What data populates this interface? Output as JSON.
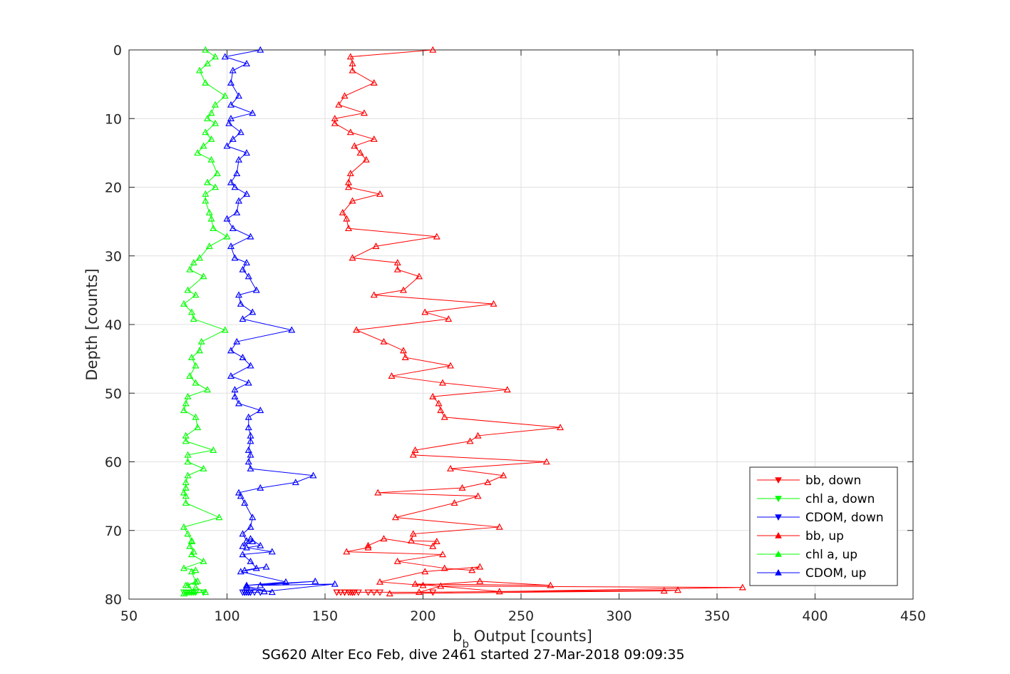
{
  "chart_data": {
    "type": "line",
    "title": "",
    "caption": "SG620 Alter Eco Feb, dive 2461 started 27-Mar-2018 09:09:35",
    "xlabel": "b",
    "xlabel_sub": "b",
    "xlabel_rest": " Output [counts]",
    "ylabel": "Depth [counts]",
    "xlim": [
      50,
      450
    ],
    "ylim": [
      0,
      80
    ],
    "y_reversed": true,
    "grid": true,
    "legend_position": "bottom-right",
    "xticks": [
      "50",
      "100",
      "150",
      "200",
      "250",
      "300",
      "350",
      "400",
      "450"
    ],
    "yticks": [
      "0",
      "10",
      "20",
      "30",
      "40",
      "50",
      "60",
      "70",
      "80"
    ],
    "series": [
      {
        "name": "bb, down",
        "color": "#ff0000",
        "marker": "triangle-down",
        "x": [
          205,
          162,
          164,
          164,
          175,
          160,
          158,
          156,
          156,
          163,
          160,
          164,
          165,
          172,
          178,
          160,
          164,
          167
        ],
        "y": [
          79,
          79,
          79,
          79,
          79,
          79,
          79,
          79,
          79,
          79,
          79,
          79,
          79,
          79,
          79,
          79,
          79,
          79
        ]
      },
      {
        "name": "chl a, down",
        "color": "#00ff00",
        "marker": "triangle-down",
        "x": [
          81,
          83,
          81,
          80,
          79,
          82,
          78,
          80,
          80,
          81,
          79,
          84,
          88,
          82,
          79,
          80
        ],
        "y": [
          79,
          79,
          79,
          79,
          79,
          79,
          79,
          79,
          79,
          79,
          79,
          79,
          79,
          79,
          79,
          79
        ]
      },
      {
        "name": "CDOM, down",
        "color": "#0000ff",
        "marker": "triangle-down",
        "x": [
          109,
          111,
          110,
          117,
          114,
          112,
          109,
          111,
          111,
          110,
          109,
          108,
          111,
          109,
          112
        ],
        "y": [
          79,
          79,
          79,
          79,
          79,
          79,
          79,
          79,
          79,
          79,
          79,
          79,
          79,
          79,
          79
        ]
      },
      {
        "name": "bb, up",
        "color": "#ff0000",
        "marker": "triangle-up",
        "x": [
          205,
          163,
          164,
          164,
          175,
          160,
          157,
          170,
          155,
          155,
          163,
          175,
          165,
          168,
          171,
          163,
          162,
          162,
          178,
          164,
          159,
          161,
          162,
          207,
          176,
          164,
          187,
          187,
          198,
          190,
          175,
          236,
          201,
          213,
          166,
          180,
          190,
          191,
          214,
          184,
          210,
          243,
          205,
          208,
          209,
          211,
          270,
          228,
          224,
          196,
          195,
          263,
          214,
          241,
          233,
          220,
          177,
          228,
          216,
          186,
          239,
          195,
          194,
          207,
          205,
          180,
          172,
          172,
          161,
          210,
          187,
          211,
          225,
          229,
          201,
          178,
          200,
          229,
          265,
          196,
          239,
          363,
          209,
          198,
          330,
          323,
          183
        ],
        "y": [
          0,
          1,
          2,
          3,
          4.8,
          6.7,
          8,
          9.2,
          10,
          10.7,
          12,
          13,
          14,
          15,
          16,
          18,
          19.3,
          20,
          21,
          22,
          23.7,
          24.6,
          26,
          27.2,
          28.6,
          30.3,
          31,
          32,
          33,
          35,
          35.7,
          37,
          38.2,
          39.2,
          40.8,
          42.5,
          43.8,
          44.8,
          46,
          47.5,
          48.5,
          49.5,
          50.5,
          51.5,
          52.5,
          53.5,
          55,
          56.2,
          57,
          58.3,
          59,
          60,
          61,
          62,
          63,
          63.8,
          64.5,
          65,
          66,
          68.1,
          69.5,
          70.5,
          71.5,
          71.6,
          72.3,
          71.2,
          72.2,
          72.5,
          73.1,
          73.5,
          74.5,
          75.5,
          75.8,
          75.3,
          76,
          77.5,
          78,
          77.4,
          78,
          77.8,
          78.9,
          78.3,
          78.1,
          79,
          78.7,
          78.8,
          79.2
        ],
        "y_note": ""
      },
      {
        "name": "chl a, up",
        "color": "#00ff00",
        "marker": "triangle-up",
        "x": [
          89,
          94,
          90,
          86,
          89,
          99,
          94,
          92,
          90,
          94,
          89,
          92,
          88,
          85,
          92,
          95,
          90,
          94,
          89,
          89,
          91,
          92,
          93,
          100,
          91,
          86,
          83,
          81,
          88,
          80,
          84,
          78,
          82,
          83,
          99,
          87,
          86,
          82,
          84,
          81,
          84,
          90,
          80,
          79,
          78,
          84,
          85,
          79,
          79,
          93,
          80,
          80,
          88,
          80,
          79,
          79,
          78,
          79,
          79,
          96,
          78,
          80,
          82,
          82,
          81,
          83,
          82,
          88,
          78,
          84,
          82,
          84,
          79,
          85,
          80,
          83,
          84,
          89,
          78
        ],
        "y": [
          0,
          1,
          2,
          3,
          4.8,
          6.7,
          8,
          9.2,
          10,
          10.7,
          12,
          13,
          14,
          15,
          16,
          18,
          19.3,
          20,
          21,
          22,
          23.7,
          24.6,
          26,
          27.2,
          28.6,
          30.3,
          31,
          32,
          33,
          35,
          35.7,
          37,
          38.2,
          39.2,
          40.8,
          42.5,
          43.8,
          44.8,
          46,
          47.5,
          48.5,
          49.5,
          50.5,
          51.5,
          52.5,
          53.5,
          55,
          56.2,
          57,
          58.3,
          59,
          60,
          61,
          62,
          63,
          63.8,
          64.5,
          65,
          66,
          68.1,
          69.5,
          70.5,
          71.5,
          71.6,
          72.3,
          73.1,
          73.5,
          74.5,
          75.5,
          75.8,
          76,
          77.5,
          78,
          77.4,
          78,
          78.9,
          78.3,
          79,
          79.2
        ]
      },
      {
        "name": "CDOM, up",
        "color": "#0000ff",
        "marker": "triangle-up",
        "x": [
          117,
          99,
          110,
          103,
          102,
          106,
          102,
          113,
          102,
          101,
          107,
          103,
          100,
          110,
          106,
          105,
          102,
          104,
          110,
          106,
          105,
          100,
          103,
          112,
          102,
          104,
          110,
          108,
          111,
          115,
          106,
          107,
          113,
          108,
          133,
          105,
          102,
          108,
          112,
          102,
          111,
          104,
          104,
          106,
          117,
          111,
          111,
          112,
          112,
          111,
          112,
          111,
          112,
          144,
          135,
          117,
          106,
          107,
          109,
          113,
          112,
          108,
          110,
          113,
          108,
          112,
          117,
          110,
          123,
          108,
          112,
          115,
          109,
          120,
          107,
          130,
          110,
          145,
          117,
          155,
          119,
          110,
          110,
          123
        ],
        "y": [
          0,
          1,
          2,
          3,
          4.8,
          6.7,
          8,
          9.2,
          10,
          10.7,
          12,
          13,
          14,
          15,
          16,
          18,
          19.3,
          20,
          21,
          22,
          23.7,
          24.6,
          26,
          27.2,
          28.6,
          30.3,
          31,
          32,
          33,
          35,
          35.7,
          37,
          38.2,
          39.2,
          40.8,
          42.5,
          43.8,
          44.8,
          46,
          47.5,
          48.5,
          49.5,
          50.5,
          51.5,
          52.5,
          53.5,
          55,
          56.2,
          57,
          58.3,
          59,
          60,
          61,
          62,
          63,
          63.8,
          64.5,
          65,
          66,
          68.1,
          69.5,
          70.5,
          71.5,
          71.6,
          72.3,
          71.2,
          72.2,
          72.5,
          73.1,
          73.5,
          74.5,
          75.5,
          75.8,
          75.3,
          76,
          77.5,
          78,
          77.4,
          78,
          77.8,
          78.9,
          78.3,
          78.1,
          79
        ]
      }
    ]
  }
}
